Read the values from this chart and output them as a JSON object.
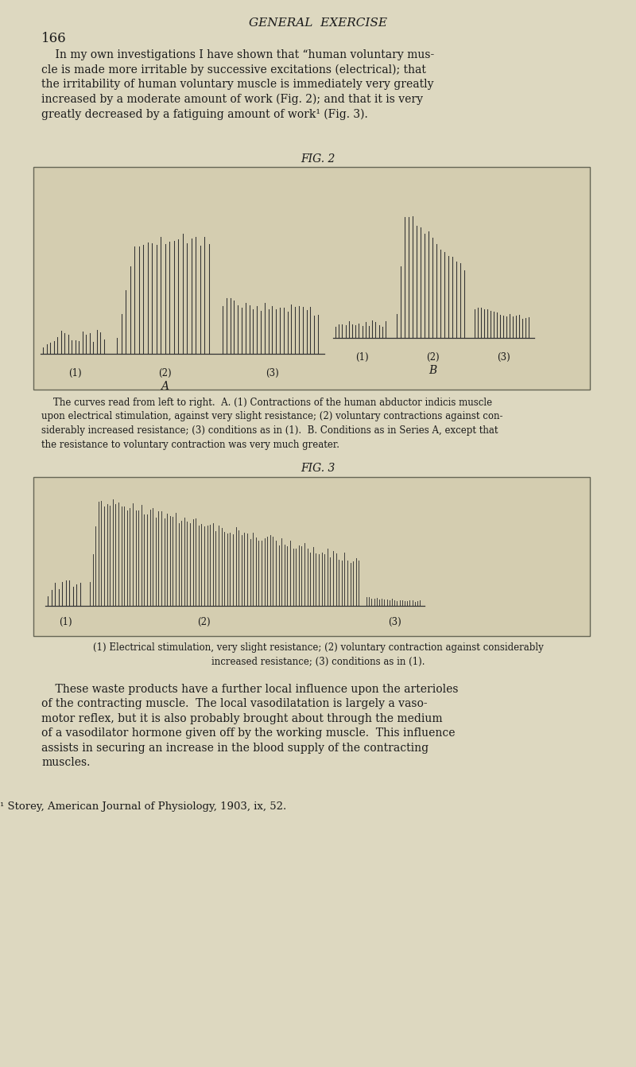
{
  "bg_color": "#ddd8c0",
  "page_number": "166",
  "header_title": "GENERAL  EXERCISE",
  "body_text_1_indent": "    In my own investigations I have shown that “human voluntary mus-\ncle is made more irritable by successive excitations (electrical); that\nthe irritability of human voluntary muscle is immediately very greatly\nincreased by a moderate amount of work (Fig. 2); and that it is very\ngreatly decreased by a fatiguing amount of work¹ (Fig. 3).",
  "fig2_title": "FIG. 2",
  "fig2_caption": "    The curves read from left to right.  A. (1) Contractions of the human abductor indicis muscle\nupon electrical stimulation, against very slight resistance; (2) voluntary contractions against con-\nsiderably increased resistance; (3) conditions as in (1).  B. Conditions as in Series A, except that\nthe resistance to voluntary contraction was very much greater.",
  "fig3_title": "FIG. 3",
  "fig3_caption_left": "(1) Electrical stimulation, very slight resistance; (2) voluntary contraction against considerably",
  "fig3_caption_right": "increased resistance; (3) conditions as in (1).",
  "body_text_2": "    These waste products have a further local influence upon the arterioles\nof the contracting muscle.  The local vasodilatation is largely a vaso-\nmotor reflex, but it is also probably brought about through the medium\nof a vasodilator hormone given off by the working muscle.  This influence\nassists in securing an increase in the blood supply of the contracting\nmuscles.",
  "footnote": "¹ Storey, American Journal of Physiology, 1903, ix, 52.",
  "fig_box_facecolor": "#d4cdb0",
  "spike_color": "#333333",
  "baseline_color": "#333333",
  "text_color": "#1a1a1a",
  "box_edge_color": "#666655"
}
